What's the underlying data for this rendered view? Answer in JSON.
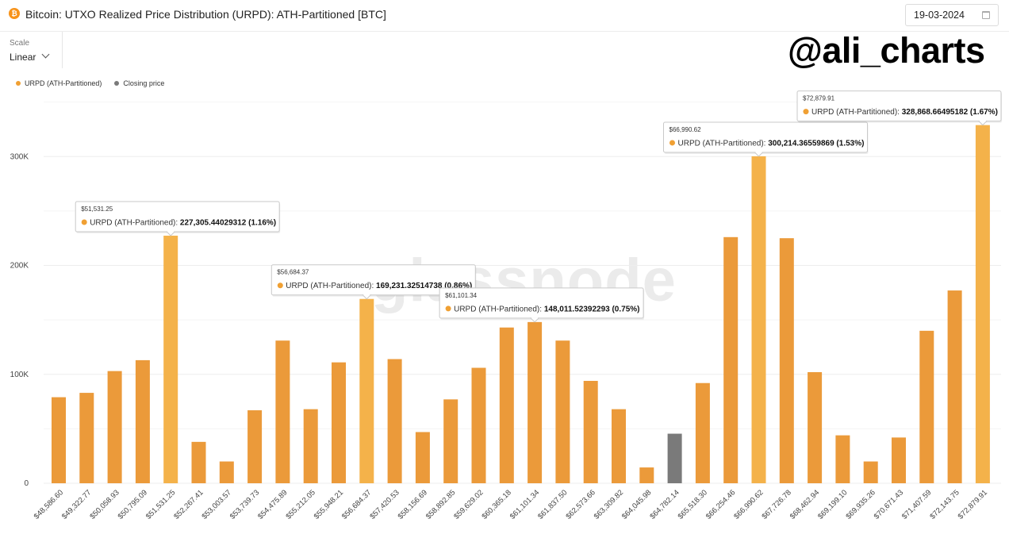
{
  "header": {
    "title": "Bitcoin: UTXO Realized Price Distribution (URPD): ATH-Partitioned [BTC]",
    "title_icon": "bitcoin-icon",
    "date": "19-03-2024",
    "date_icon": "calendar-icon"
  },
  "scale": {
    "label": "Scale",
    "value": "Linear",
    "icon": "chevron-down-icon"
  },
  "watermark": {
    "handle": "@ali_charts",
    "logo_text": "glassnode"
  },
  "legend": [
    {
      "label": "URPD (ATH-Partitioned)",
      "color": "#f0a033"
    },
    {
      "label": "Closing price",
      "color": "#7a7a7a"
    }
  ],
  "colors": {
    "bar": "#eb9a3a",
    "bar_highlight": "#f4b24a",
    "closing": "#7a7a7a",
    "grid": "#ededed"
  },
  "chart_data": {
    "type": "bar",
    "ylim": [
      0,
      340000
    ],
    "y_ticks": [
      0,
      100000,
      200000,
      300000
    ],
    "y_tick_labels": [
      "0",
      "100K",
      "200K",
      "300K"
    ],
    "grid": true,
    "categories": [
      "$48,586.60",
      "$49,322.77",
      "$50,058.93",
      "$50,795.09",
      "$51,531.25",
      "$52,267.41",
      "$53,003.57",
      "$53,739.73",
      "$54,475.89",
      "$55,212.05",
      "$55,948.21",
      "$56,684.37",
      "$57,420.53",
      "$58,156.69",
      "$58,892.85",
      "$59,629.02",
      "$60,365.18",
      "$61,101.34",
      "$61,837.50",
      "$62,573.66",
      "$63,309.82",
      "$64,045.98",
      "$64,782.14",
      "$65,518.30",
      "$66,254.46",
      "$66,990.62",
      "$67,726.78",
      "$68,462.94",
      "$69,199.10",
      "$69,935.26",
      "$70,671.43",
      "$71,407.59",
      "$72,143.75",
      "$72,879.91"
    ],
    "series": [
      {
        "name": "URPD (ATH-Partitioned)",
        "values": [
          79000,
          83000,
          103000,
          113000,
          227305.44029312,
          38000,
          20000,
          67000,
          131000,
          68000,
          111000,
          169231.32514738,
          114000,
          47000,
          77000,
          106000,
          143000,
          148011.52392293,
          131000,
          94000,
          68000,
          14500,
          null,
          92000,
          226000,
          300214.36559869,
          225000,
          102000,
          44000,
          20000,
          42000,
          140000,
          177000,
          328868.66495182
        ]
      },
      {
        "name": "Closing price",
        "values": [
          null,
          null,
          null,
          null,
          null,
          null,
          null,
          null,
          null,
          null,
          null,
          null,
          null,
          null,
          null,
          null,
          null,
          null,
          null,
          null,
          null,
          null,
          45500,
          null,
          null,
          null,
          null,
          null,
          null,
          null,
          null,
          null,
          null,
          null
        ]
      }
    ],
    "highlight_indices": [
      4,
      11,
      25,
      33
    ],
    "annotations": [
      {
        "index": 4,
        "price": "$51,531.25",
        "label": "URPD (ATH-Partitioned):",
        "value": "227,305.44029312 (1.16%)"
      },
      {
        "index": 11,
        "price": "$56,684.37",
        "label": "URPD (ATH-Partitioned):",
        "value": "169,231.32514738 (0.86%)"
      },
      {
        "index": 17,
        "price": "$61,101.34",
        "label": "URPD (ATH-Partitioned):",
        "value": "148,011.52392293 (0.75%)"
      },
      {
        "index": 25,
        "price": "$66,990.62",
        "label": "URPD (ATH-Partitioned):",
        "value": "300,214.36559869 (1.53%)"
      },
      {
        "index": 33,
        "price": "$72,879.91",
        "label": "URPD (ATH-Partitioned):",
        "value": "328,868.66495182 (1.67%)"
      }
    ]
  }
}
